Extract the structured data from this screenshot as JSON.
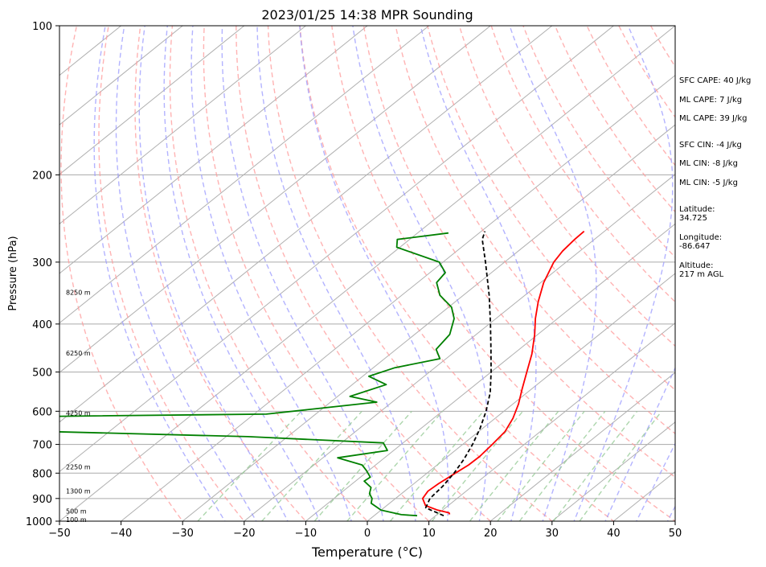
{
  "chart_data": {
    "type": "line",
    "chart_kind": "skew-T log-P sounding",
    "title": "2023/01/25 14:38 MPR Sounding",
    "xlabel": "Temperature (°C)",
    "ylabel": "Pressure (hPa)",
    "xlim": [
      -50,
      50
    ],
    "ylim": [
      1000,
      100
    ],
    "y_scale": "log",
    "x_ticks": [
      -50,
      -40,
      -30,
      -20,
      -10,
      0,
      10,
      20,
      30,
      40,
      50
    ],
    "x_tick_labels": [
      "−50",
      "−40",
      "−30",
      "−20",
      "−10",
      "0",
      "10",
      "20",
      "30",
      "40",
      "50"
    ],
    "y_ticks": [
      100,
      200,
      300,
      400,
      500,
      600,
      700,
      800,
      900,
      1000
    ],
    "y_tick_labels": [
      "100",
      "200",
      "300",
      "400",
      "500",
      "600",
      "700",
      "800",
      "900",
      "1000"
    ],
    "grid": true,
    "isotherms_every_c": 10,
    "dry_adiabats_color": "#ff9999",
    "moist_adiabats_color": "#9999ff",
    "mixing_ratio_color": "#99cc99",
    "series": [
      {
        "name": "temperature",
        "color": "#ff0000",
        "points": [
          [
            969,
            12.0
          ],
          [
            962,
            11.6
          ],
          [
            950,
            9.2
          ],
          [
            930,
            6.3
          ],
          [
            900,
            4.4
          ],
          [
            870,
            3.8
          ],
          [
            840,
            4.0
          ],
          [
            800,
            4.6
          ],
          [
            770,
            5.1
          ],
          [
            740,
            5.2
          ],
          [
            700,
            4.8
          ],
          [
            660,
            4.3
          ],
          [
            620,
            2.9
          ],
          [
            580,
            0.9
          ],
          [
            540,
            -1.6
          ],
          [
            500,
            -4.2
          ],
          [
            460,
            -7.0
          ],
          [
            420,
            -10.5
          ],
          [
            390,
            -13.6
          ],
          [
            360,
            -16.6
          ],
          [
            330,
            -19.5
          ],
          [
            300,
            -22.0
          ],
          [
            285,
            -22.8
          ],
          [
            270,
            -23.2
          ],
          [
            260,
            -23.3
          ]
        ]
      },
      {
        "name": "dewpoint",
        "color": "#008000",
        "points": [
          [
            975,
            7.0
          ],
          [
            970,
            4.2
          ],
          [
            950,
            0.0
          ],
          [
            920,
            -3.0
          ],
          [
            900,
            -3.8
          ],
          [
            880,
            -5.2
          ],
          [
            855,
            -6.2
          ],
          [
            830,
            -8.6
          ],
          [
            815,
            -8.4
          ],
          [
            790,
            -10.4
          ],
          [
            770,
            -12.2
          ],
          [
            745,
            -17.6
          ],
          [
            720,
            -11.0
          ],
          [
            695,
            -13.2
          ],
          [
            675,
            -36.5
          ],
          [
            657,
            -75.0
          ],
          [
            615,
            -75.0
          ],
          [
            608,
            -38.0
          ],
          [
            575,
            -22.5
          ],
          [
            560,
            -28.0
          ],
          [
            530,
            -24.5
          ],
          [
            510,
            -29.0
          ],
          [
            490,
            -26.5
          ],
          [
            470,
            -21.0
          ],
          [
            450,
            -23.5
          ],
          [
            420,
            -24.3
          ],
          [
            390,
            -26.8
          ],
          [
            370,
            -29.5
          ],
          [
            350,
            -33.8
          ],
          [
            330,
            -36.9
          ],
          [
            315,
            -37.5
          ],
          [
            300,
            -40.6
          ],
          [
            280,
            -50.5
          ],
          [
            270,
            -52.0
          ],
          [
            262,
            -45.0
          ]
        ]
      },
      {
        "name": "parcel",
        "color": "#000000",
        "dashed": true,
        "points": [
          [
            975,
            11.3
          ],
          [
            940,
            6.8
          ],
          [
            900,
            5.6
          ],
          [
            850,
            5.2
          ],
          [
            800,
            4.4
          ],
          [
            750,
            3.2
          ],
          [
            700,
            1.6
          ],
          [
            650,
            -0.4
          ],
          [
            600,
            -2.9
          ],
          [
            550,
            -6.0
          ],
          [
            500,
            -10.0
          ],
          [
            450,
            -14.6
          ],
          [
            400,
            -19.8
          ],
          [
            350,
            -25.8
          ],
          [
            300,
            -33.1
          ],
          [
            270,
            -38.2
          ],
          [
            260,
            -39.4
          ]
        ]
      }
    ],
    "height_labels": [
      {
        "pressure": 992,
        "text": "100 m"
      },
      {
        "pressure": 955,
        "text": "500 m"
      },
      {
        "pressure": 870,
        "text": "1300 m"
      },
      {
        "pressure": 777,
        "text": "2250 m"
      },
      {
        "pressure": 605,
        "text": "4250 m"
      },
      {
        "pressure": 458,
        "text": "6250 m"
      },
      {
        "pressure": 345,
        "text": "8250 m"
      }
    ]
  },
  "side_panel": [
    {
      "text": "SFC CAPE: 40 J/kg"
    },
    {
      "text": "ML CAPE: 7 J/kg"
    },
    {
      "text": "ML CAPE: 39 J/kg"
    },
    {
      "text": "SFC CIN: -4 J/kg"
    },
    {
      "text": "ML CIN: -8 J/kg"
    },
    {
      "text": "ML CIN: -5 J/kg"
    },
    {
      "text": "Latitude:\n34.725"
    },
    {
      "text": "Longitude:\n-86.647"
    },
    {
      "text": "Altitude:\n217 m AGL"
    }
  ]
}
